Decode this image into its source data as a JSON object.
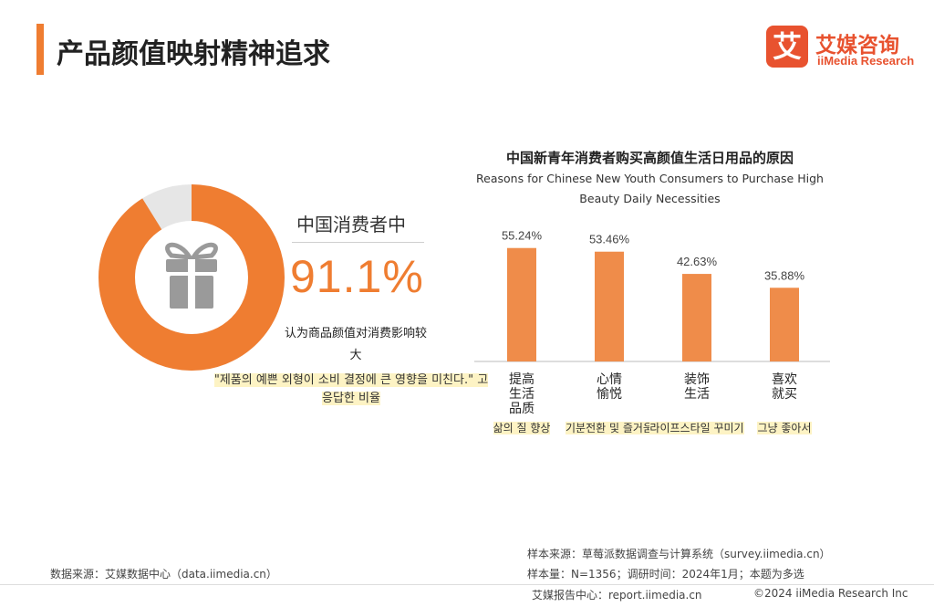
{
  "header": {
    "title": "产品颜值映射精神追求",
    "logo_mark": "艾",
    "logo_cn": "艾媒咨询",
    "logo_en": "iiMedia Research"
  },
  "donut": {
    "value": 91.1,
    "label_top": "中国消费者中",
    "value_text": "91.1%",
    "description": "认为商品颜值对消费影响较大",
    "korean_note": "\"제품의 예쁜 외형이 소비 결정에 큰 영향을 미친다.\" 고 응답한 비율",
    "color": "#ef7d31",
    "icon": "gift-icon"
  },
  "chart_data": {
    "type": "bar",
    "title": "中国新青年消费者购买高颜值生活日用品的原因",
    "subtitle": "Reasons for Chinese New Youth Consumers to Purchase High Beauty Daily Necessities",
    "categories": [
      "提高\n生活\n品质",
      "心情\n愉悦",
      "装饰\n生活",
      "喜欢\n就买"
    ],
    "categories_ko": [
      "삶의 질 향상",
      "기분전환 및 즐거움",
      "라이프스타일 꾸미기",
      "그냥 좋아서"
    ],
    "values": [
      55.24,
      53.46,
      42.63,
      35.88
    ],
    "value_labels": [
      "55.24%",
      "53.46%",
      "42.63%",
      "35.88%"
    ],
    "ylim": [
      0,
      60
    ],
    "grid": false,
    "bar_color": "#ef8c4a"
  },
  "footer": {
    "data_source": "数据来源：艾媒数据中心（data.iimedia.cn）",
    "sample_source": "样本来源：草莓派数据调查与计算系统（survey.iimedia.cn）",
    "sample_info": "样本量：N=1356；调研时间：2024年1月；本题为多选",
    "report_center": "艾媒报告中心：report.iimedia.cn",
    "copyright": "©2024 iiMedia Research Inc"
  }
}
